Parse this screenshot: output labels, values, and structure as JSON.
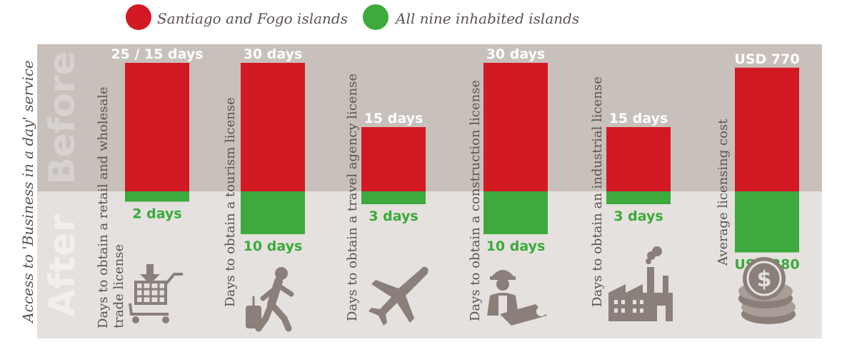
{
  "legend": [
    {
      "label": "Santiago and Fogo islands",
      "color": "#d31a24"
    },
    {
      "label": "All nine inhabited islands",
      "color": "#3eaa3e"
    }
  ],
  "panel": {
    "before_label": "Before",
    "after_label": "After",
    "before_color": "#c8c0bb",
    "after_color": "#e5e1de"
  },
  "chart_data": {
    "type": "bar",
    "yaxis_title": "Access to 'Business in a day' service",
    "categories": [
      "Days to obtain a retail and wholesale trade license",
      "Days to obtain a tourism license",
      "Days to obtain a travel agency license",
      "Days to obtain a construction license",
      "Days to obtain an industrial license",
      "Average licensing cost"
    ],
    "category_lines": [
      [
        "Days to obtain a retail and wholesale",
        "trade license"
      ],
      [
        "Days to obtain a tourism license"
      ],
      [
        "Days to obtain a travel agency license"
      ],
      [
        "Days to obtain a construction license"
      ],
      [
        "Days to obtain an industrial license"
      ],
      [
        "Average licensing cost"
      ]
    ],
    "icons": [
      "shopping-cart-icon",
      "traveler-icon",
      "airplane-icon",
      "construction-worker-icon",
      "factory-icon",
      "coins-icon"
    ],
    "series": [
      {
        "name": "Santiago and Fogo islands",
        "values": [
          25,
          30,
          15,
          30,
          15,
          770
        ]
      },
      {
        "name": "All nine inhabited islands",
        "values": [
          2,
          10,
          3,
          10,
          3,
          380
        ]
      }
    ],
    "labels_before": [
      "25 / 15 days",
      "30 days",
      "15 days",
      "30 days",
      "15 days",
      "USD 770"
    ],
    "labels_after": [
      "2 days",
      "10 days",
      "3 days",
      "10 days",
      "3 days",
      "USD 380"
    ]
  }
}
